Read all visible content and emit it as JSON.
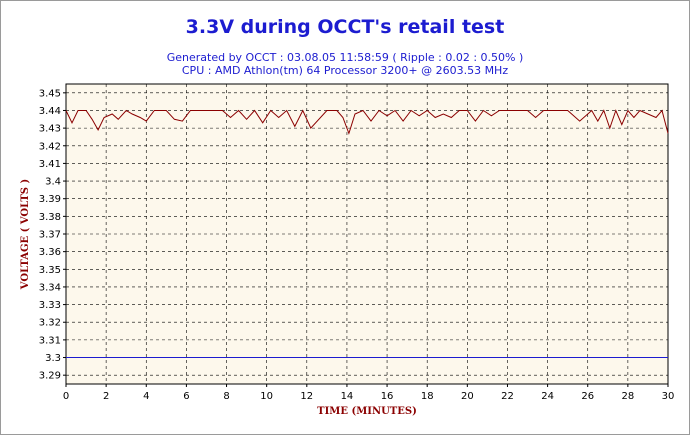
{
  "title": "3.3V during OCCT's retail test",
  "subtitle_line1": "Generated by OCCT : 03.08.05 11:58:59 ( Ripple : 0.02 : 0.50% )",
  "subtitle_line2": "CPU : AMD Athlon(tm) 64 Processor 3200+ @ 2603.53 MHz",
  "colors": {
    "title": "#1c1cd0",
    "series": "#8b0000",
    "reference_line": "#1c1cd0",
    "plot_background": "#fdf8ec",
    "axis_label": "#8b0000"
  },
  "chart_data": {
    "type": "line",
    "title": "3.3V during OCCT's retail test",
    "xlabel": "TIME (MINUTES)",
    "ylabel": "VOLTAGE ( VOLTS )",
    "xlim": [
      0,
      30
    ],
    "ylim": [
      3.285,
      3.455
    ],
    "x_ticks": [
      0,
      2,
      4,
      6,
      8,
      10,
      12,
      14,
      16,
      18,
      20,
      22,
      24,
      26,
      28,
      30
    ],
    "x_tick_labels": [
      "0",
      "2",
      "4",
      "6",
      "8",
      "10",
      "12",
      "14",
      "16",
      "18",
      "20",
      "22",
      "24",
      "26",
      "28",
      "30"
    ],
    "y_ticks": [
      3.29,
      3.3,
      3.31,
      3.32,
      3.33,
      3.34,
      3.35,
      3.36,
      3.37,
      3.38,
      3.39,
      3.4,
      3.41,
      3.42,
      3.43,
      3.44,
      3.45
    ],
    "y_tick_labels": [
      "3.29",
      "3.3",
      "3.31",
      "3.32",
      "3.33",
      "3.34",
      "3.35",
      "3.36",
      "3.37",
      "3.38",
      "3.39",
      "3.4",
      "3.41",
      "3.42",
      "3.43",
      "3.44",
      "3.45"
    ],
    "grid": true,
    "reference_line": {
      "y": 3.3
    },
    "series": [
      {
        "x": [
          0,
          0.3,
          0.6,
          1.0,
          1.3,
          1.6,
          1.9,
          2.3,
          2.6,
          3.0,
          3.3,
          3.7,
          4.0,
          4.4,
          5.0,
          5.4,
          5.8,
          6.2,
          7.0,
          7.8,
          8.2,
          8.6,
          9.0,
          9.4,
          9.8,
          10.2,
          10.6,
          11.0,
          11.4,
          11.8,
          12.2,
          13.0,
          13.5,
          13.8,
          14.1,
          14.4,
          14.8,
          15.2,
          15.6,
          16.0,
          16.4,
          16.8,
          17.2,
          17.6,
          18.0,
          18.4,
          18.8,
          19.2,
          19.6,
          20.0,
          20.4,
          20.8,
          21.2,
          21.6,
          22.0,
          23.0,
          23.4,
          23.8,
          24.4,
          25.0,
          25.6,
          26.2,
          26.5,
          26.8,
          27.1,
          27.4,
          27.7,
          28.0,
          28.3,
          28.6,
          29.0,
          29.4,
          29.7,
          30.0
        ],
        "y": [
          3.44,
          3.433,
          3.44,
          3.44,
          3.435,
          3.429,
          3.436,
          3.438,
          3.435,
          3.44,
          3.438,
          3.436,
          3.434,
          3.44,
          3.44,
          3.435,
          3.434,
          3.44,
          3.44,
          3.44,
          3.436,
          3.44,
          3.435,
          3.44,
          3.433,
          3.44,
          3.436,
          3.44,
          3.431,
          3.44,
          3.43,
          3.44,
          3.44,
          3.436,
          3.427,
          3.438,
          3.44,
          3.434,
          3.44,
          3.437,
          3.44,
          3.434,
          3.44,
          3.437,
          3.44,
          3.436,
          3.438,
          3.436,
          3.44,
          3.44,
          3.434,
          3.44,
          3.437,
          3.44,
          3.44,
          3.44,
          3.436,
          3.44,
          3.44,
          3.44,
          3.434,
          3.44,
          3.434,
          3.44,
          3.43,
          3.44,
          3.432,
          3.44,
          3.436,
          3.44,
          3.438,
          3.436,
          3.44,
          3.427
        ]
      }
    ]
  }
}
